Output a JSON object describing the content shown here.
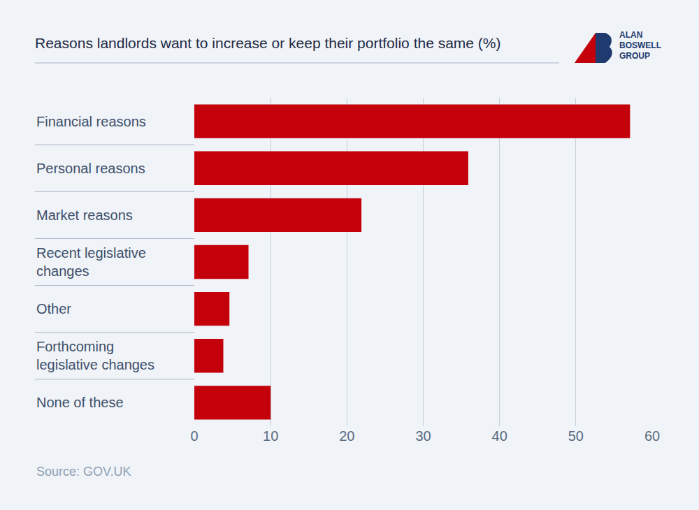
{
  "chart_data": {
    "type": "bar",
    "orientation": "horizontal",
    "title": "Reasons landlords want to increase or keep their portfolio the same (%)",
    "source": "Source: GOV.UK",
    "logo": [
      "ALAN",
      "BOSWELL",
      "GROUP"
    ],
    "categories": [
      "Financial reasons",
      "Personal reasons",
      "Market reasons",
      "Recent legislative changes",
      "Other",
      "Forthcoming legislative changes",
      "None of these"
    ],
    "values": [
      57.1,
      35.9,
      21.9,
      7.1,
      4.6,
      3.8,
      10
    ],
    "color": "#c4000b",
    "xlim": [
      0,
      60
    ],
    "xticks": [
      0,
      10,
      20,
      30,
      40,
      50,
      60
    ],
    "grid": true
  }
}
